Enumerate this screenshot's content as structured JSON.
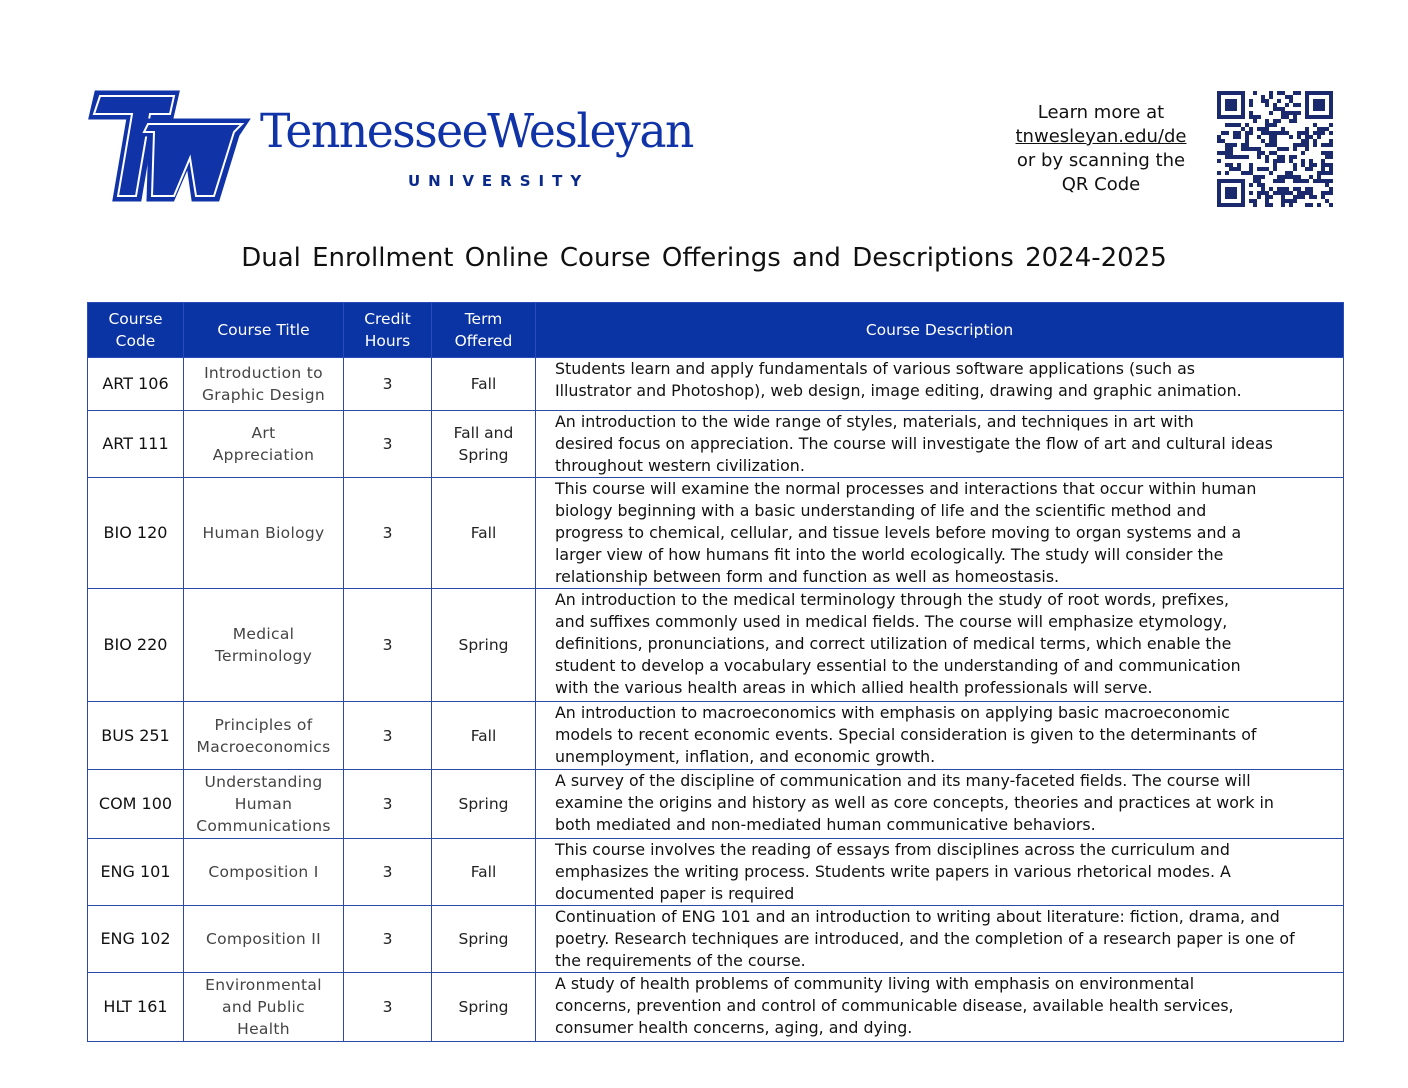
{
  "header": {
    "logo_text": "TennesseeWesleyan",
    "logo_sub": "UNIVERSITY",
    "logo_mark": "TW",
    "learn_lines": [
      "Learn more at",
      "tnwesleyan.edu/de",
      "or by scanning the",
      "QR Code"
    ]
  },
  "title": "Dual Enrollment Online Course Offerings and Descriptions 2024-2025",
  "colors": {
    "brand": "#0a33a3",
    "border": "#2b4aa8"
  },
  "table": {
    "headers": [
      "Course\nCode",
      "Course Title",
      "Credit\nHours",
      "Term\nOffered",
      "Course Description"
    ],
    "rows": [
      {
        "code": "ART 106",
        "title": "Introduction to\nGraphic Design",
        "hours": "3",
        "term": "Fall",
        "desc": "Students learn and apply fundamentals of various software applications (such as\nIllustrator and Photoshop), web design, image editing, drawing and graphic animation."
      },
      {
        "code": "ART 111",
        "title": "Art\nAppreciation",
        "hours": "3",
        "term": "Fall and\nSpring",
        "desc": "An introduction to the wide range of styles, materials, and techniques in art with\ndesired focus on appreciation. The course will investigate the flow of art and cultural ideas\nthroughout western civilization."
      },
      {
        "code": "BIO 120",
        "title": "Human Biology",
        "hours": "3",
        "term": "Fall",
        "desc": "This course will examine the normal processes and interactions that occur within human\nbiology beginning with a basic understanding of life and the scientific method and\nprogress to chemical, cellular, and tissue levels before moving to organ systems and a\nlarger view of how humans fit into the world ecologically. The study will consider the\nrelationship between form and function as well as homeostasis."
      },
      {
        "code": "BIO 220",
        "title": "Medical\nTerminology",
        "hours": "3",
        "term": "Spring",
        "desc": "An introduction to the medical terminology through the study of root words, prefixes,\nand suffixes commonly used in medical fields. The course will emphasize etymology,\ndefinitions, pronunciations, and correct utilization of medical terms, which enable the\nstudent to develop a vocabulary essential to the understanding of and communication\nwith the various health areas in which allied health professionals will serve."
      },
      {
        "code": "BUS 251",
        "title": "Principles of\nMacroeconomics",
        "hours": "3",
        "term": "Fall",
        "desc": "An introduction to macroeconomics with emphasis on applying basic macroeconomic\nmodels to recent economic events. Special consideration is given to the determinants of\nunemployment, inflation, and economic growth."
      },
      {
        "code": "COM 100",
        "title": "Understanding\nHuman\nCommunications",
        "hours": "3",
        "term": "Spring",
        "desc": "A survey of the discipline of communication and its many-faceted fields. The course will\nexamine the origins and history as well as core concepts, theories and practices at work in\nboth mediated and non-mediated human communicative behaviors."
      },
      {
        "code": "ENG 101",
        "title": "Composition I",
        "hours": "3",
        "term": "Fall",
        "desc": "This course involves the reading of essays from disciplines across the curriculum and\nemphasizes the writing process. Students write papers in various rhetorical modes. A\ndocumented paper is required"
      },
      {
        "code": "ENG 102",
        "title": "Composition II",
        "hours": "3",
        "term": "Spring",
        "desc": "Continuation of ENG 101 and an introduction to writing about literature: fiction, drama, and\npoetry. Research techniques are introduced, and the completion of a research paper is one of\nthe requirements of the course."
      },
      {
        "code": "HLT 161",
        "title": "Environmental\nand Public\nHealth",
        "hours": "3",
        "term": "Spring",
        "desc": "A study of health problems of community living with emphasis on environmental\nconcerns, prevention and control of communicable disease, available health services,\nconsumer health concerns, aging, and dying."
      }
    ]
  }
}
